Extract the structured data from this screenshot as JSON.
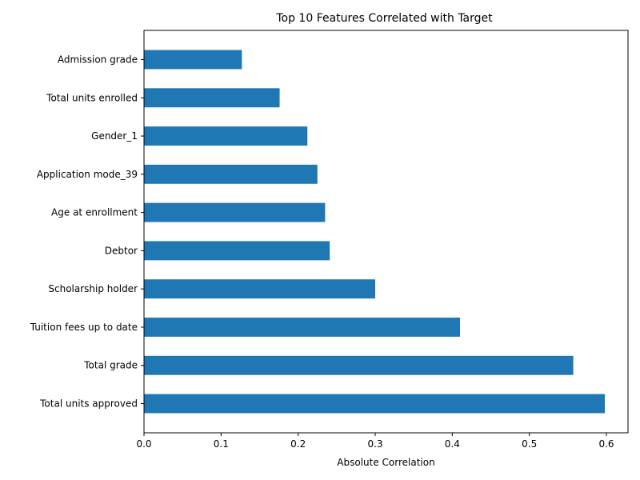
{
  "chart_data": {
    "type": "bar",
    "orientation": "horizontal",
    "title": "Top 10 Features Correlated with Target",
    "xlabel": "Absolute Correlation",
    "ylabel": "",
    "categories": [
      "Total units approved",
      "Total grade",
      "Tuition fees up to date",
      "Scholarship holder",
      "Debtor",
      "Age at enrollment",
      "Application mode_39",
      "Gender_1",
      "Total units enrolled",
      "Admission grade"
    ],
    "values": [
      0.598,
      0.557,
      0.41,
      0.3,
      0.241,
      0.235,
      0.225,
      0.212,
      0.176,
      0.127
    ],
    "xlim": [
      0,
      0.628
    ],
    "xticks": [
      "0.0",
      "0.1",
      "0.2",
      "0.3",
      "0.4",
      "0.5",
      "0.6"
    ],
    "grid": false,
    "bar_color": "#1f77b4"
  }
}
